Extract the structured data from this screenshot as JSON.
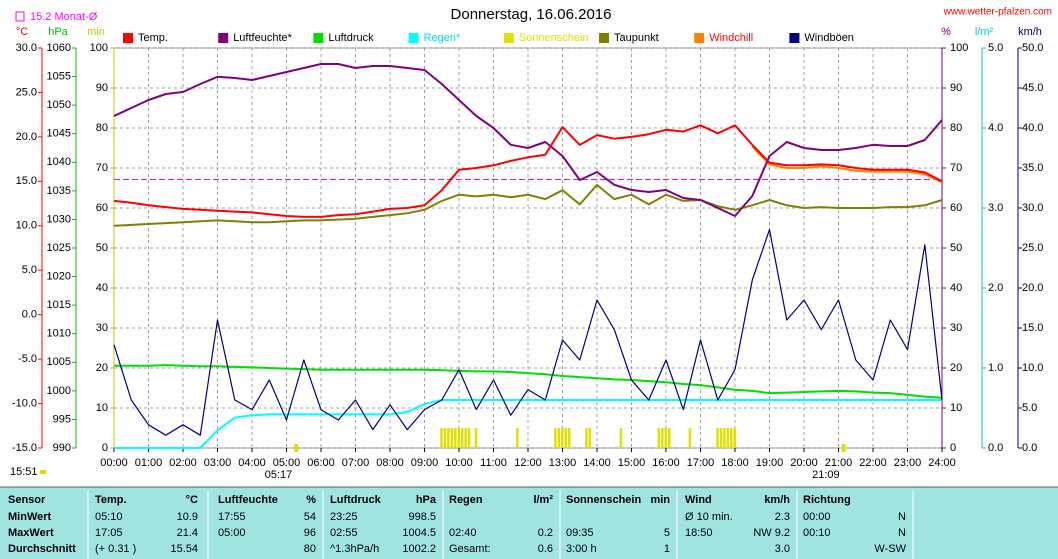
{
  "chart_data": {
    "type": "line",
    "title": "Donnerstag, 16.06.2016",
    "source": "www.wetter-pfalzen.com",
    "timestamp": "15:51",
    "monthly_avg": {
      "value": 15.2,
      "label": "15.2 Monat-Ø"
    },
    "sun_events": [
      {
        "value": 5.283,
        "label": "05:17"
      },
      {
        "value": 21.15,
        "label": "21:09"
      }
    ],
    "axes": {
      "temp": {
        "label": "°C",
        "color": "#ff0000",
        "lim": [
          -15,
          30
        ],
        "ticks": [
          {
            "value": 30,
            "label": "30.0"
          },
          {
            "value": 25,
            "label": "25.0"
          },
          {
            "value": 20,
            "label": "20.0"
          },
          {
            "value": 15,
            "label": "15.0"
          },
          {
            "value": 10,
            "label": "10.0"
          },
          {
            "value": 5,
            "label": "5.0"
          },
          {
            "value": 0,
            "label": "0.0"
          },
          {
            "value": -5,
            "label": "-5.0"
          },
          {
            "value": -10,
            "label": "-10.0"
          },
          {
            "value": -15,
            "label": "-15.0"
          }
        ]
      },
      "hpa": {
        "label": "hPa",
        "color": "#00c000",
        "lim": [
          990,
          1060
        ],
        "ticks": [
          1060,
          1055,
          1050,
          1045,
          1040,
          1035,
          1030,
          1025,
          1020,
          1015,
          1010,
          1005,
          1000,
          995,
          990
        ]
      },
      "min": {
        "label": "min",
        "color": "#c8c800",
        "lim": [
          0,
          100
        ],
        "ticks": [
          100,
          90,
          80,
          70,
          60,
          50,
          40,
          30,
          20,
          10,
          0
        ]
      },
      "pct": {
        "label": "%",
        "color": "#800080",
        "lim": [
          0,
          100
        ],
        "ticks": [
          100,
          90,
          80,
          70,
          60,
          50,
          40,
          30,
          20,
          10,
          0
        ]
      },
      "rain": {
        "label": "l/m²",
        "color": "#00c8c8",
        "lim": [
          0,
          5
        ],
        "ticks": [
          {
            "value": 5,
            "label": "5.0"
          },
          {
            "value": 4,
            "label": "4.0"
          },
          {
            "value": 3,
            "label": "3.0"
          },
          {
            "value": 2,
            "label": "2.0"
          },
          {
            "value": 1,
            "label": "1.0"
          },
          {
            "value": 0,
            "label": "0.0"
          }
        ]
      },
      "wind": {
        "label": "km/h",
        "color": "#000080",
        "lim": [
          0,
          50
        ],
        "ticks": [
          {
            "value": 50,
            "label": "50.0"
          },
          {
            "value": 45,
            "label": "45.0"
          },
          {
            "value": 40,
            "label": "40.0"
          },
          {
            "value": 35,
            "label": "35.0"
          },
          {
            "value": 30,
            "label": "30.0"
          },
          {
            "value": 25,
            "label": "25.0"
          },
          {
            "value": 20,
            "label": "20.0"
          },
          {
            "value": 15,
            "label": "15.0"
          },
          {
            "value": 10,
            "label": "10.0"
          },
          {
            "value": 5,
            "label": "5.0"
          },
          {
            "value": 0,
            "label": "0.0"
          }
        ]
      }
    },
    "xlim": [
      0,
      24
    ],
    "xticks": [
      {
        "value": 0,
        "label": "00:00"
      },
      {
        "value": 1,
        "label": "01:00"
      },
      {
        "value": 2,
        "label": "02:00"
      },
      {
        "value": 3,
        "label": "03:00"
      },
      {
        "value": 4,
        "label": "04:00"
      },
      {
        "value": 5,
        "label": "05:00"
      },
      {
        "value": 6,
        "label": "06:00"
      },
      {
        "value": 7,
        "label": "07:00"
      },
      {
        "value": 8,
        "label": "08:00"
      },
      {
        "value": 9,
        "label": "09:00"
      },
      {
        "value": 10,
        "label": "10:00"
      },
      {
        "value": 11,
        "label": "11:00"
      },
      {
        "value": 12,
        "label": "12:00"
      },
      {
        "value": 13,
        "label": "13:00"
      },
      {
        "value": 14,
        "label": "14:00"
      },
      {
        "value": 15,
        "label": "15:00"
      },
      {
        "value": 16,
        "label": "16:00"
      },
      {
        "value": 17,
        "label": "17:00"
      },
      {
        "value": 18,
        "label": "18:00"
      },
      {
        "value": 19,
        "label": "19:00"
      },
      {
        "value": 20,
        "label": "20:00"
      },
      {
        "value": 21,
        "label": "21:00"
      },
      {
        "value": 22,
        "label": "22:00"
      },
      {
        "value": 23,
        "label": "23:00"
      },
      {
        "value": 24,
        "label": "24:00"
      }
    ],
    "grid": true,
    "x": [
      0,
      0.5,
      1,
      1.5,
      2,
      2.5,
      3,
      3.5,
      4,
      4.5,
      5,
      5.5,
      6,
      6.5,
      7,
      7.5,
      8,
      8.5,
      9,
      9.5,
      10,
      10.5,
      11,
      11.5,
      12,
      12.5,
      13,
      13.5,
      14,
      14.5,
      15,
      15.5,
      16,
      16.5,
      17,
      17.5,
      18,
      18.5,
      19,
      19.5,
      20,
      20.5,
      21,
      21.5,
      22,
      22.5,
      23,
      23.5,
      24
    ],
    "series": [
      {
        "name": "Temp.",
        "color": "#ff0000",
        "axis": "temp",
        "values": [
          12.8,
          12.6,
          12.3,
          12.1,
          11.9,
          11.8,
          11.7,
          11.6,
          11.5,
          11.3,
          11.1,
          11.0,
          11.0,
          11.2,
          11.3,
          11.6,
          11.9,
          12.0,
          12.3,
          14.0,
          16.3,
          16.5,
          16.8,
          17.3,
          17.7,
          18.0,
          21.1,
          19.1,
          20.2,
          19.8,
          20.0,
          20.3,
          20.8,
          20.6,
          21.3,
          20.4,
          21.3,
          19.1,
          17.1,
          16.8,
          16.8,
          16.9,
          16.8,
          16.5,
          16.3,
          16.3,
          16.3,
          16.0,
          15.0
        ]
      },
      {
        "name": "Luftfeuchte*",
        "color": "#800080",
        "axis": "pct",
        "values": [
          83,
          85,
          87,
          88.5,
          89,
          91,
          92.8,
          92.5,
          92,
          93,
          94,
          95,
          96,
          96,
          95,
          95.5,
          95.5,
          95,
          94.5,
          91,
          87,
          83,
          80,
          75.8,
          75,
          76.5,
          73,
          67,
          69,
          65.8,
          64.5,
          64,
          64.5,
          62.5,
          62,
          60,
          58,
          63,
          73,
          76.5,
          75,
          74.5,
          74.5,
          75,
          75.8,
          75.5,
          75.5,
          77,
          82
        ]
      },
      {
        "name": "Luftdruck",
        "color": "#00e000",
        "axis": "hpa",
        "values": [
          1004.4,
          1004.4,
          1004.4,
          1004.5,
          1004.4,
          1004.3,
          1004.3,
          1004.2,
          1004.1,
          1004.0,
          1003.9,
          1003.8,
          1003.7,
          1003.7,
          1003.7,
          1003.7,
          1003.7,
          1003.7,
          1003.7,
          1003.6,
          1003.5,
          1003.4,
          1003.4,
          1003.3,
          1003.1,
          1002.9,
          1002.6,
          1002.4,
          1002.2,
          1002.0,
          1001.9,
          1001.7,
          1001.5,
          1001.2,
          1001.0,
          1000.6,
          1000.2,
          1000.0,
          999.6,
          999.7,
          999.8,
          999.9,
          1000.0,
          999.9,
          999.7,
          999.6,
          999.3,
          999.0,
          998.8
        ]
      },
      {
        "name": "Regen*",
        "color": "#00ffff",
        "text_color": "#00e0e0",
        "axis": "rain",
        "values": [
          0,
          0,
          0,
          0,
          0,
          0,
          0.22,
          0.38,
          0.41,
          0.42,
          0.42,
          0.42,
          0.42,
          0.42,
          0.42,
          0.42,
          0.42,
          0.45,
          0.55,
          0.6,
          0.6,
          0.6,
          0.6,
          0.6,
          0.6,
          0.6,
          0.6,
          0.6,
          0.6,
          0.6,
          0.6,
          0.6,
          0.6,
          0.6,
          0.6,
          0.6,
          0.6,
          0.6,
          0.6,
          0.6,
          0.6,
          0.6,
          0.6,
          0.6,
          0.6,
          0.6,
          0.6,
          0.6,
          0.6
        ]
      },
      {
        "name": "Sonnenschein",
        "color": "#e0e000",
        "text_color": "#e0e000",
        "axis": "min",
        "kind": "bar",
        "x": [
          9.5,
          9.6,
          9.7,
          9.8,
          9.9,
          10.0,
          10.1,
          10.2,
          10.3,
          10.5,
          11.7,
          12.8,
          12.9,
          13.0,
          13.1,
          13.2,
          13.7,
          13.8,
          14.7,
          15.8,
          15.9,
          16.0,
          16.1,
          16.7,
          17.5,
          17.6,
          17.7,
          17.8,
          17.9,
          18.0
        ],
        "values": [
          5,
          5,
          5,
          5,
          5,
          5,
          5,
          5,
          5,
          5,
          5,
          5,
          5,
          5,
          5,
          5,
          5,
          5,
          5,
          5,
          5,
          5,
          5,
          5,
          5,
          5,
          5,
          5,
          5,
          5
        ]
      },
      {
        "name": "Taupunkt",
        "color": "#808000",
        "axis": "temp",
        "values": [
          10.0,
          10.1,
          10.2,
          10.3,
          10.4,
          10.5,
          10.6,
          10.5,
          10.4,
          10.4,
          10.5,
          10.6,
          10.6,
          10.7,
          10.8,
          11.0,
          11.2,
          11.4,
          11.8,
          12.8,
          13.5,
          13.3,
          13.5,
          13.2,
          13.5,
          13.0,
          14.0,
          12.4,
          14.6,
          13.0,
          13.5,
          12.4,
          13.5,
          12.8,
          12.9,
          12.2,
          11.8,
          12.3,
          12.9,
          12.3,
          12.0,
          12.1,
          12.0,
          12.0,
          12.0,
          12.1,
          12.1,
          12.3,
          12.9
        ]
      },
      {
        "name": "Windchill",
        "color": "#ff8000",
        "text_color": "#ff0000",
        "axis": "temp",
        "values": [
          null,
          null,
          null,
          null,
          null,
          null,
          null,
          null,
          null,
          null,
          null,
          null,
          null,
          null,
          null,
          null,
          null,
          null,
          null,
          null,
          null,
          null,
          null,
          null,
          null,
          null,
          null,
          null,
          null,
          null,
          null,
          null,
          null,
          null,
          null,
          null,
          null,
          18.9,
          16.9,
          16.5,
          16.5,
          16.7,
          16.5,
          16.2,
          16.1,
          16.1,
          16.1,
          15.8,
          14.9
        ]
      },
      {
        "name": "Windböen",
        "color": "#000080",
        "axis": "wind",
        "values": [
          12.9,
          6,
          2.9,
          1.6,
          2.9,
          1.6,
          16,
          6,
          4.8,
          8.5,
          3.5,
          11,
          4.8,
          3.5,
          6,
          2.3,
          5.4,
          2.3,
          4.8,
          6,
          9.8,
          4.8,
          8.5,
          4.1,
          7.3,
          6,
          13.5,
          11,
          18.5,
          14.8,
          8.5,
          6,
          11,
          4.8,
          13.5,
          6,
          9.8,
          21,
          27.3,
          16,
          18.5,
          14.8,
          18.5,
          11,
          8.5,
          16,
          12.3,
          25.4,
          6
        ]
      }
    ]
  },
  "table": {
    "header": [
      "Sensor",
      "Temp.",
      "°C",
      "Luftfeuchte",
      "%",
      "Luftdruck",
      "hPa",
      "Regen",
      "l/m²",
      "Sonnenschein",
      "min",
      "Wind",
      "km/h",
      "Richtung",
      null
    ],
    "rows": [
      [
        "MinWert",
        "05:10",
        "10.9",
        "17:55",
        "54",
        "23:25",
        "998.5",
        null,
        null,
        null,
        null,
        "Ø 10 min.",
        "2.3",
        "00:00",
        "N"
      ],
      [
        "MaxWert",
        "17:05",
        "21.4",
        "05:00",
        "96",
        "02:55",
        "1004.5",
        "02:40",
        "0.2",
        "09:35",
        "5",
        "18:50",
        "NW 9.2",
        "00:10",
        "N"
      ],
      [
        "Durchschnitt",
        "(+ 0.31 )",
        "15.54",
        null,
        "80",
        "^1.3hPa/h",
        "1002.2",
        "Gesamt:",
        "0.6",
        "3:00 h",
        "1",
        null,
        "3.0",
        null,
        "W-SW"
      ]
    ]
  }
}
